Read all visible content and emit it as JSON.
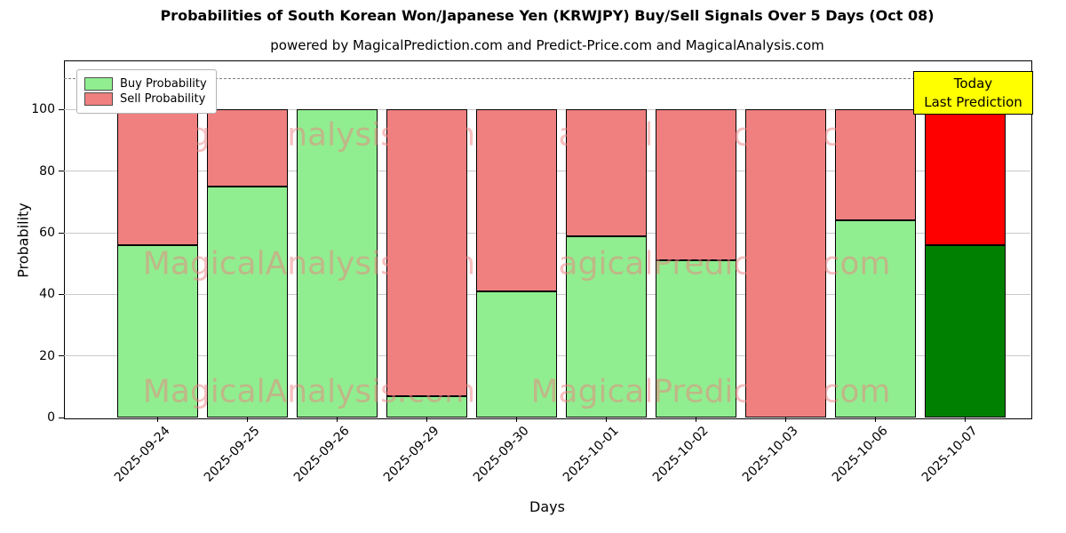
{
  "subtitle": "powered by MagicalPrediction.com and Predict-Price.com and MagicalAnalysis.com",
  "annotation": {
    "line1": "Today",
    "line2": "Last Prediction",
    "bg": "#ffff00"
  },
  "watermark": {
    "texts": [
      "MagicalAnalysis.com",
      "MagicalPrediction.com"
    ],
    "color": "rgba(240,128,128,0.5)"
  },
  "chart_data": {
    "type": "bar",
    "stacked": true,
    "title": "Probabilities of South Korean Won/Japanese Yen (KRWJPY) Buy/Sell Signals Over 5 Days (Oct 08)",
    "xlabel": "Days",
    "ylabel": "Probability",
    "categories": [
      "2025-09-24",
      "2025-09-25",
      "2025-09-26",
      "2025-09-29",
      "2025-09-30",
      "2025-10-01",
      "2025-10-02",
      "2025-10-03",
      "2025-10-06",
      "2025-10-07"
    ],
    "series": [
      {
        "name": "Buy Probability",
        "color": "#90ee90",
        "values": [
          56,
          75,
          100,
          7,
          41,
          59,
          51,
          0,
          64,
          56
        ]
      },
      {
        "name": "Sell Probability",
        "color": "#f08080",
        "values": [
          44,
          25,
          0,
          93,
          59,
          41,
          49,
          100,
          36,
          44
        ]
      }
    ],
    "last_bar_colors": [
      "#008000",
      "#ff0000"
    ],
    "ylim": [
      0,
      116
    ],
    "yticks": [
      0,
      20,
      40,
      60,
      80,
      100
    ],
    "dashed_line_y": 110,
    "grid": "horizontal",
    "legend_position": "upper left"
  }
}
